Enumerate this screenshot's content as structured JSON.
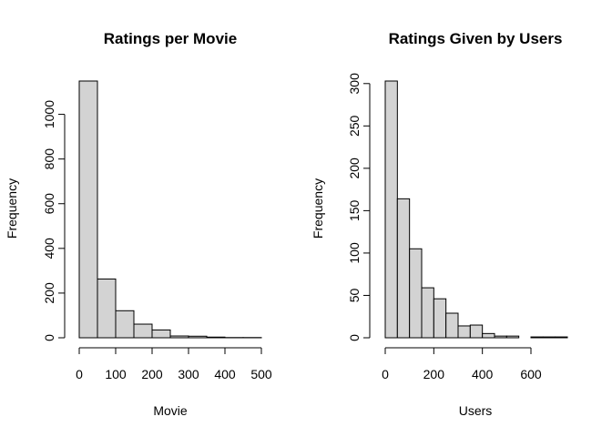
{
  "chart_data": [
    {
      "type": "bar",
      "subtype": "histogram",
      "title": "Ratings per Movie",
      "xlabel": "Movie",
      "ylabel": "Frequency",
      "bins": [
        [
          0,
          50
        ],
        [
          50,
          100
        ],
        [
          100,
          150
        ],
        [
          150,
          200
        ],
        [
          200,
          250
        ],
        [
          250,
          300
        ],
        [
          300,
          350
        ],
        [
          350,
          400
        ],
        [
          400,
          450
        ],
        [
          450,
          500
        ]
      ],
      "values": [
        1149,
        263,
        121,
        61,
        35,
        8,
        7,
        3,
        1,
        1
      ],
      "xticks": [
        "0",
        "100",
        "200",
        "300",
        "400",
        "500"
      ],
      "yticks": [
        "0",
        "200",
        "400",
        "600",
        "800",
        "1000"
      ],
      "xlim": [
        0,
        500
      ],
      "ylim": [
        0,
        1149
      ],
      "grid": false,
      "bar_color": "#d3d3d3"
    },
    {
      "type": "bar",
      "subtype": "histogram",
      "title": "Ratings Given by Users",
      "xlabel": "Users",
      "ylabel": "Frequency",
      "bins": [
        [
          0,
          50
        ],
        [
          50,
          100
        ],
        [
          100,
          150
        ],
        [
          150,
          200
        ],
        [
          200,
          250
        ],
        [
          250,
          300
        ],
        [
          300,
          350
        ],
        [
          350,
          400
        ],
        [
          400,
          450
        ],
        [
          450,
          500
        ],
        [
          500,
          550
        ],
        [
          550,
          600
        ],
        [
          600,
          650
        ],
        [
          650,
          700
        ],
        [
          700,
          750
        ]
      ],
      "values": [
        303,
        164,
        105,
        59,
        46,
        29,
        14,
        15,
        5,
        2,
        2,
        0,
        1,
        1,
        1
      ],
      "xticks": [
        "0",
        "200",
        "400",
        "600"
      ],
      "yticks": [
        "0",
        "50",
        "100",
        "150",
        "200",
        "250",
        "300"
      ],
      "xlim": [
        0,
        750
      ],
      "ylim": [
        0,
        303
      ],
      "grid": false,
      "bar_color": "#d3d3d3"
    }
  ]
}
